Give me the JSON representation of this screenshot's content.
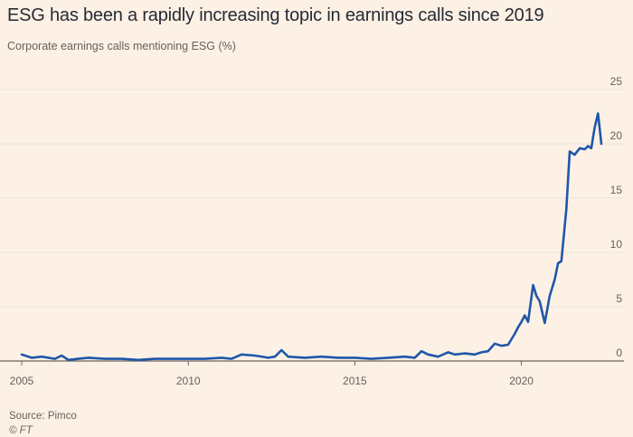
{
  "title": "ESG has been a rapidly increasing topic in earnings calls since 2019",
  "subtitle": "Corporate earnings calls mentioning ESG (%)",
  "source": "Source: Pimco",
  "credit": "© FT",
  "colors": {
    "line": "#1f57a8",
    "grid": "#ebe2d8",
    "background": "#fdf1e6"
  },
  "chart_data": {
    "type": "line",
    "title": "ESG has been a rapidly increasing topic in earnings calls since 2019",
    "subtitle": "Corporate earnings calls mentioning ESG (%)",
    "xlabel": "",
    "ylabel": "Corporate earnings calls mentioning ESG (%)",
    "xlim": [
      2005,
      2022.4
    ],
    "ylim": [
      0,
      25
    ],
    "x_ticks": [
      2005,
      2010,
      2015,
      2020
    ],
    "y_ticks": [
      0,
      5,
      10,
      15,
      20,
      25
    ],
    "grid": true,
    "series": [
      {
        "name": "Corporate earnings calls mentioning ESG (%)",
        "x": [
          2005.0,
          2005.3,
          2005.6,
          2006.0,
          2006.2,
          2006.4,
          2006.7,
          2007.0,
          2007.5,
          2008.0,
          2008.5,
          2009.0,
          2009.5,
          2010.0,
          2010.5,
          2011.0,
          2011.3,
          2011.6,
          2012.0,
          2012.4,
          2012.6,
          2012.8,
          2013.0,
          2013.5,
          2014.0,
          2014.5,
          2015.0,
          2015.5,
          2016.0,
          2016.5,
          2016.8,
          2017.0,
          2017.2,
          2017.5,
          2017.8,
          2018.0,
          2018.3,
          2018.6,
          2018.8,
          2019.0,
          2019.2,
          2019.4,
          2019.6,
          2019.8,
          2019.9,
          2020.0,
          2020.1,
          2020.2,
          2020.35,
          2020.45,
          2020.55,
          2020.7,
          2020.85,
          2021.0,
          2021.1,
          2021.2,
          2021.35,
          2021.45,
          2021.6,
          2021.75,
          2021.9,
          2022.0,
          2022.1,
          2022.2,
          2022.3,
          2022.4
        ],
        "values": [
          0.6,
          0.3,
          0.4,
          0.2,
          0.5,
          0.1,
          0.2,
          0.3,
          0.2,
          0.2,
          0.1,
          0.2,
          0.2,
          0.2,
          0.2,
          0.3,
          0.2,
          0.6,
          0.5,
          0.3,
          0.4,
          1.0,
          0.4,
          0.3,
          0.4,
          0.3,
          0.3,
          0.2,
          0.3,
          0.4,
          0.3,
          0.9,
          0.6,
          0.4,
          0.8,
          0.6,
          0.7,
          0.6,
          0.8,
          0.9,
          1.6,
          1.4,
          1.5,
          2.5,
          3.1,
          3.6,
          4.2,
          3.6,
          7.0,
          6.0,
          5.5,
          3.5,
          6.0,
          7.5,
          9.0,
          9.2,
          14.0,
          19.3,
          19.0,
          19.6,
          19.5,
          19.8,
          19.6,
          21.5,
          22.8,
          20.0
        ]
      }
    ]
  }
}
